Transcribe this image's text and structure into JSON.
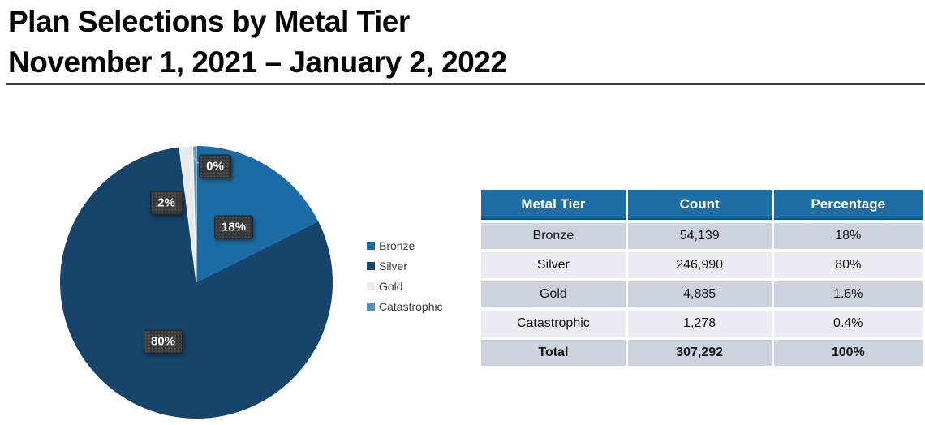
{
  "header": {
    "title_line1": "Plan Selections by Metal Tier",
    "title_line2": "November 1, 2021 – January 2, 2022"
  },
  "chart_data": {
    "type": "pie",
    "title": "Plan Selections by Metal Tier",
    "subtitle": "November 1, 2021 – January 2, 2022",
    "legend_position": "right",
    "slices": [
      {
        "name": "Bronze",
        "count": 54139,
        "percent": 17.6,
        "data_label": "18%",
        "color": "#1b6ca4"
      },
      {
        "name": "Silver",
        "count": 246990,
        "percent": 80.4,
        "data_label": "80%",
        "color": "#17446b"
      },
      {
        "name": "Gold",
        "count": 4885,
        "percent": 1.6,
        "data_label": "2%",
        "color": "#e9ebeb"
      },
      {
        "name": "Catastrophic",
        "count": 1278,
        "percent": 0.4,
        "data_label": "0%",
        "color": "#4f95c0"
      }
    ],
    "total_count": 307292
  },
  "table": {
    "columns": [
      "Metal Tier",
      "Count",
      "Percentage"
    ],
    "rows": [
      [
        "Bronze",
        "54,139",
        "18%"
      ],
      [
        "Silver",
        "246,990",
        "80%"
      ],
      [
        "Gold",
        "4,885",
        "1.6%"
      ],
      [
        "Catastrophic",
        "1,278",
        "0.4%"
      ]
    ],
    "total_row": [
      "Total",
      "307,292",
      "100%"
    ]
  },
  "colors": {
    "table_header_bg": "#1e6da5",
    "table_row_dark": "#ccd3de",
    "table_row_light": "#e9ecf3",
    "data_label_bg": "#373737",
    "title_text": "#060606"
  }
}
